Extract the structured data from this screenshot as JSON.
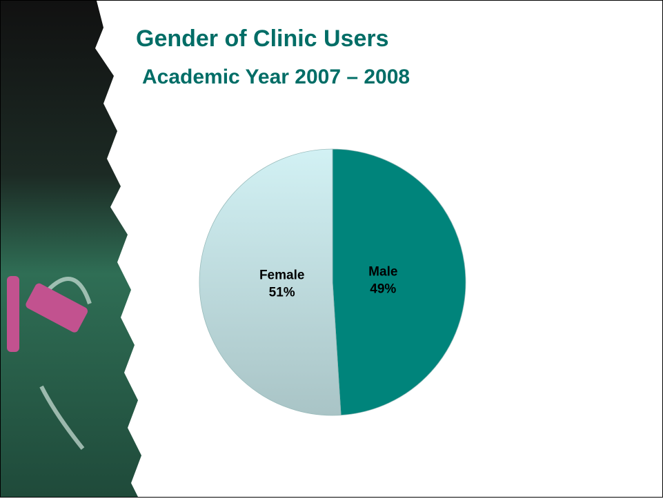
{
  "chart_data": {
    "type": "pie",
    "title": "Gender of Clinic Users",
    "subtitle": "Academic Year 2007 – 2008",
    "categories": [
      "Male",
      "Female"
    ],
    "values": [
      49,
      51
    ],
    "value_labels": [
      "49%",
      "51%"
    ],
    "colors": [
      "#00847b",
      "#d2f1f4"
    ]
  }
}
